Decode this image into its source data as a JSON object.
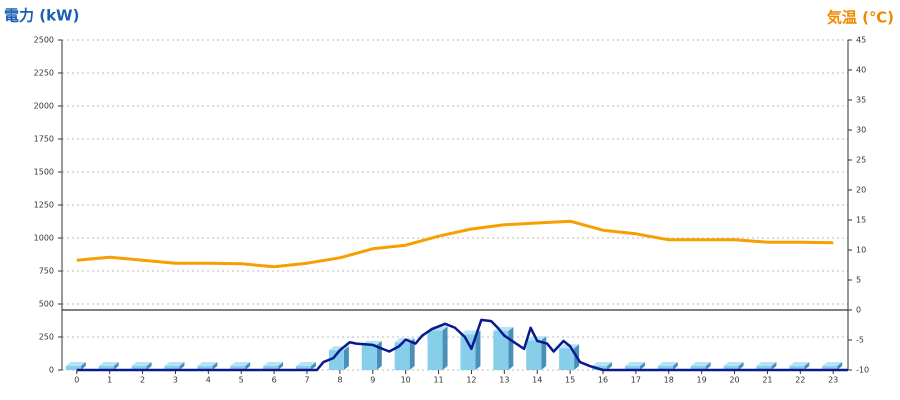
{
  "chart_data": {
    "type": "combo",
    "y_label": "電力 (kW)",
    "y2_label": "気温 (℃)",
    "xlim": [
      -0.45,
      23.45
    ],
    "xticks": [
      0,
      1,
      2,
      3,
      4,
      5,
      6,
      7,
      8,
      9,
      10,
      11,
      12,
      13,
      14,
      15,
      16,
      17,
      18,
      19,
      20,
      21,
      22,
      23
    ],
    "ylim": [
      0,
      2500
    ],
    "yticks": [
      0,
      250,
      500,
      750,
      1000,
      1250,
      1500,
      1750,
      2000,
      2250,
      2500
    ],
    "y2lim": [
      -10,
      45
    ],
    "y2ticks": [
      -10,
      -5,
      0,
      5,
      10,
      15,
      20,
      25,
      30,
      35,
      40,
      45
    ],
    "grid": true,
    "series": [
      {
        "type": "bar",
        "color": "#87ceeb",
        "x": [
          0,
          1,
          2,
          3,
          4,
          5,
          6,
          7,
          8,
          9,
          10,
          11,
          12,
          13,
          14,
          15,
          16,
          17,
          18,
          19,
          20,
          21,
          22,
          23
        ],
        "values": [
          30,
          30,
          30,
          30,
          30,
          30,
          30,
          30,
          150,
          190,
          210,
          300,
          270,
          295,
          225,
          165,
          30,
          30,
          30,
          30,
          30,
          30,
          30,
          30
        ]
      },
      {
        "type": "line",
        "color": "#0a1a8c",
        "x": [
          0,
          7.3,
          7.5,
          7.8,
          8,
          8.3,
          8.5,
          9,
          9.3,
          9.5,
          9.8,
          10,
          10.3,
          10.5,
          10.8,
          11,
          11.2,
          11.5,
          11.8,
          12,
          12.3,
          12.6,
          12.8,
          13,
          13.3,
          13.6,
          13.8,
          14,
          14.3,
          14.5,
          14.8,
          15,
          15.3,
          15.6,
          16,
          23.45
        ],
        "values": [
          0,
          0,
          60,
          90,
          150,
          210,
          200,
          190,
          160,
          140,
          180,
          230,
          200,
          260,
          310,
          330,
          350,
          320,
          250,
          160,
          380,
          370,
          320,
          260,
          210,
          160,
          320,
          220,
          200,
          140,
          220,
          180,
          60,
          30,
          0,
          0
        ]
      },
      {
        "type": "line",
        "axis": "y2",
        "color": "#f5a000",
        "x": [
          0,
          1,
          2,
          3,
          4,
          5,
          6,
          7,
          8,
          9,
          10,
          11,
          12,
          13,
          14,
          15,
          16,
          17,
          18,
          19,
          20,
          21,
          22,
          23
        ],
        "values": [
          8.3,
          8.8,
          8.3,
          7.8,
          7.8,
          7.7,
          7.2,
          7.8,
          8.7,
          10.2,
          10.8,
          12.3,
          13.5,
          14.2,
          14.5,
          14.8,
          13.3,
          12.7,
          11.7,
          11.7,
          11.7,
          11.3,
          11.3,
          11.2
        ]
      }
    ]
  }
}
